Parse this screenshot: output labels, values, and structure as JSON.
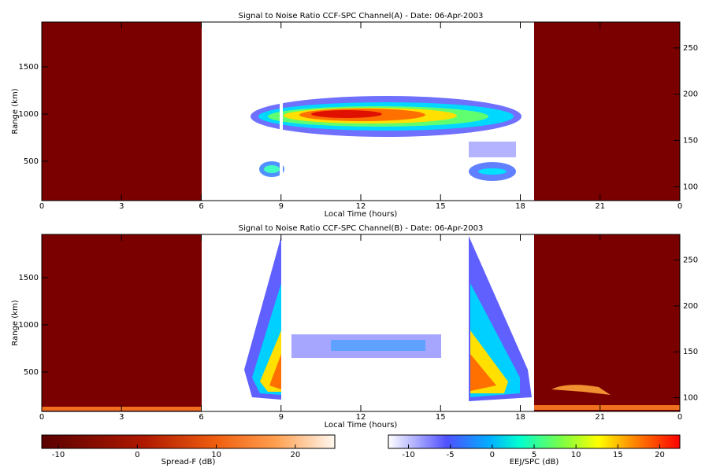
{
  "chart_data": [
    {
      "type": "heatmap",
      "title": "Signal to Noise Ratio CCF-SPC Channel(A) - Date: 06-Apr-2003",
      "xlabel": "Local Time (hours)",
      "ylabel": "Range (km)",
      "xlim": [
        0,
        24
      ],
      "xticks": [
        0,
        3,
        6,
        9,
        12,
        15,
        18,
        21,
        {
          "value": 24,
          "label": "0"
        }
      ],
      "ylim": [
        83,
        1975
      ],
      "yticks": [
        500,
        1000,
        1500
      ],
      "y2lim": [
        85,
        278
      ],
      "y2ticks": [
        100,
        150,
        200,
        250
      ]
    },
    {
      "type": "heatmap",
      "title": "Signal to Noise Ratio CCF-SPC Channel(B) - Date: 06-Apr-2003",
      "xlabel": "Local Time (hours)",
      "ylabel": "Range (km)",
      "xlim": [
        0,
        24
      ],
      "xticks": [
        0,
        3,
        6,
        9,
        12,
        15,
        18,
        21,
        {
          "value": 24,
          "label": "0"
        }
      ],
      "ylim": [
        83,
        1958
      ],
      "yticks": [
        500,
        1000,
        1500
      ],
      "y2lim": [
        85,
        278
      ],
      "y2ticks": [
        100,
        150,
        200,
        250
      ]
    }
  ],
  "colorbars": [
    {
      "label": "Spread-F (dB)",
      "lim": [
        -12.1,
        25
      ],
      "ticks": [
        -10,
        0,
        10,
        20
      ]
    },
    {
      "label": "EEJ/SPC (dB)",
      "lim": [
        -12.4,
        22.4
      ],
      "ticks": [
        -10,
        -5,
        0,
        5,
        10,
        15,
        20
      ]
    }
  ]
}
